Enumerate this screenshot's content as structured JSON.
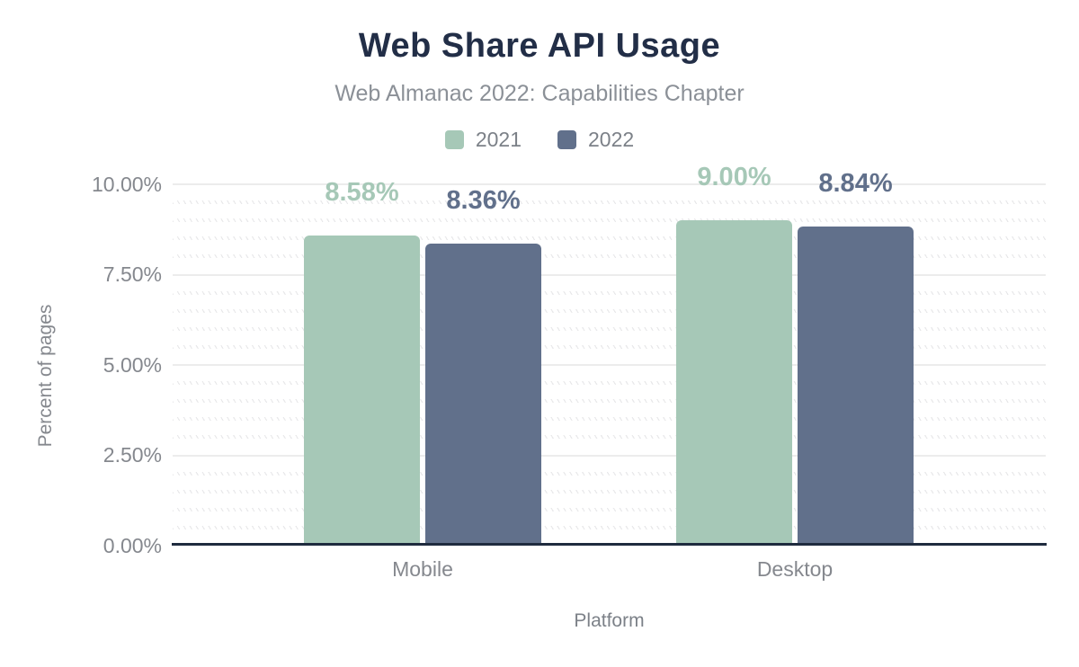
{
  "chart_data": {
    "type": "bar",
    "title": "Web Share API Usage",
    "subtitle": "Web Almanac 2022: Capabilities Chapter",
    "categories": [
      "Mobile",
      "Desktop"
    ],
    "series": [
      {
        "name": "2021",
        "color": "#a6c8b7",
        "values": [
          8.58,
          9.0
        ],
        "labels": [
          "8.58%",
          "9.00%"
        ]
      },
      {
        "name": "2022",
        "color": "#61708b",
        "values": [
          8.36,
          8.84
        ],
        "labels": [
          "8.36%",
          "8.84%"
        ]
      }
    ],
    "xlabel": "Platform",
    "ylabel": "Percent of pages",
    "ylim": [
      0,
      10
    ],
    "yticks": [
      0,
      2.5,
      5,
      7.5,
      10
    ],
    "ytick_labels": [
      "0.00%",
      "2.50%",
      "5.00%",
      "7.50%",
      "10.00%"
    ],
    "grid": "horizontal: solid major lines, hatched minor lines every 0.5%",
    "legend_position": "top-center"
  },
  "colors": {
    "title_text": "#222e47",
    "subtitle_text": "#8b9097",
    "axis_line": "#1f2b3e",
    "tick_label_text": "#85888e",
    "gridline_major": "#ececec",
    "series_2021": "#a6c8b7",
    "series_2022": "#61708b",
    "background": "#ffffff"
  }
}
